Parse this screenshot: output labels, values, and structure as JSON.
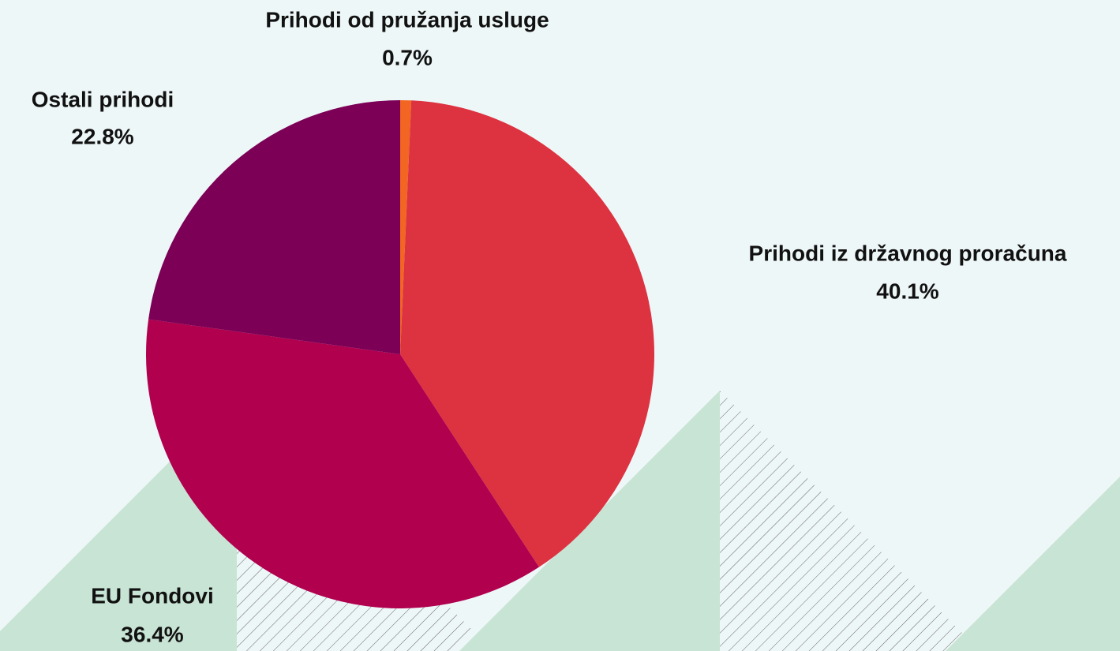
{
  "chart_data": {
    "type": "pie",
    "categories": [
      "Prihodi od pružanja usluge",
      "Prihodi iz državnog proračuna",
      "EU Fondovi",
      "Ostali prihodi"
    ],
    "values": [
      0.7,
      40.1,
      36.4,
      22.8
    ],
    "value_labels": [
      "0.7%",
      "40.1%",
      "36.4%",
      "22.8%"
    ],
    "colors": [
      "#f26522",
      "#dd3240",
      "#b0004e",
      "#7b0056"
    ]
  }
}
